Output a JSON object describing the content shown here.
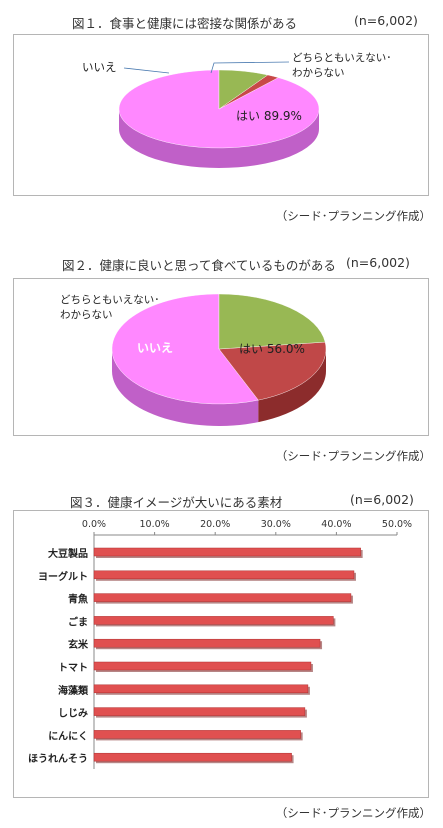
{
  "source_label": "（シード･プランニング作成）",
  "chart_data": [
    {
      "type": "pie",
      "title": "図１．食事と健康には密接な関係がある",
      "sample": "(n=6,002)",
      "slices": [
        {
          "label": "はい",
          "value": 89.9,
          "value_label": "89.9%",
          "color": "#ff88ff",
          "side": "#c060c8"
        },
        {
          "label": "いいえ",
          "value": 2.0,
          "color": "#c84848",
          "side": "#8c2c2c"
        },
        {
          "label": "どちらともいえない･\nわからない",
          "value": 8.1,
          "color": "#98b854",
          "side": "#6c8c38"
        }
      ]
    },
    {
      "type": "pie",
      "title": "図２．健康に良いと思って食べているものがある",
      "sample": "(n=6,002)",
      "slices": [
        {
          "label": "はい",
          "value": 56.0,
          "value_label": "56.0%",
          "color": "#ff88ff",
          "side": "#c060c8"
        },
        {
          "label": "いいえ",
          "value": 21.0,
          "color": "#c04848",
          "side": "#8c2c2c"
        },
        {
          "label": "どちらともいえない･\nわからない",
          "value": 23.0,
          "color": "#98b854",
          "side": "#6c8c38"
        }
      ]
    },
    {
      "type": "bar",
      "orientation": "horizontal",
      "title": "図３．健康イメージが大いにある素材",
      "sample": "(n=6,002)",
      "categories": [
        "大豆製品",
        "ヨーグルト",
        "青魚",
        "ごま",
        "玄米",
        "トマト",
        "海藻類",
        "しじみ",
        "にんにく",
        "ほうれんそう"
      ],
      "values": [
        44.0,
        42.9,
        42.4,
        39.5,
        37.3,
        35.8,
        35.3,
        34.8,
        34.1,
        32.6
      ],
      "xlim": [
        0,
        50
      ],
      "ticks": [
        "0.0%",
        "10.0%",
        "20.0%",
        "30.0%",
        "40.0%",
        "50.0%"
      ],
      "bar_color": "#e05050",
      "grid": false
    }
  ]
}
